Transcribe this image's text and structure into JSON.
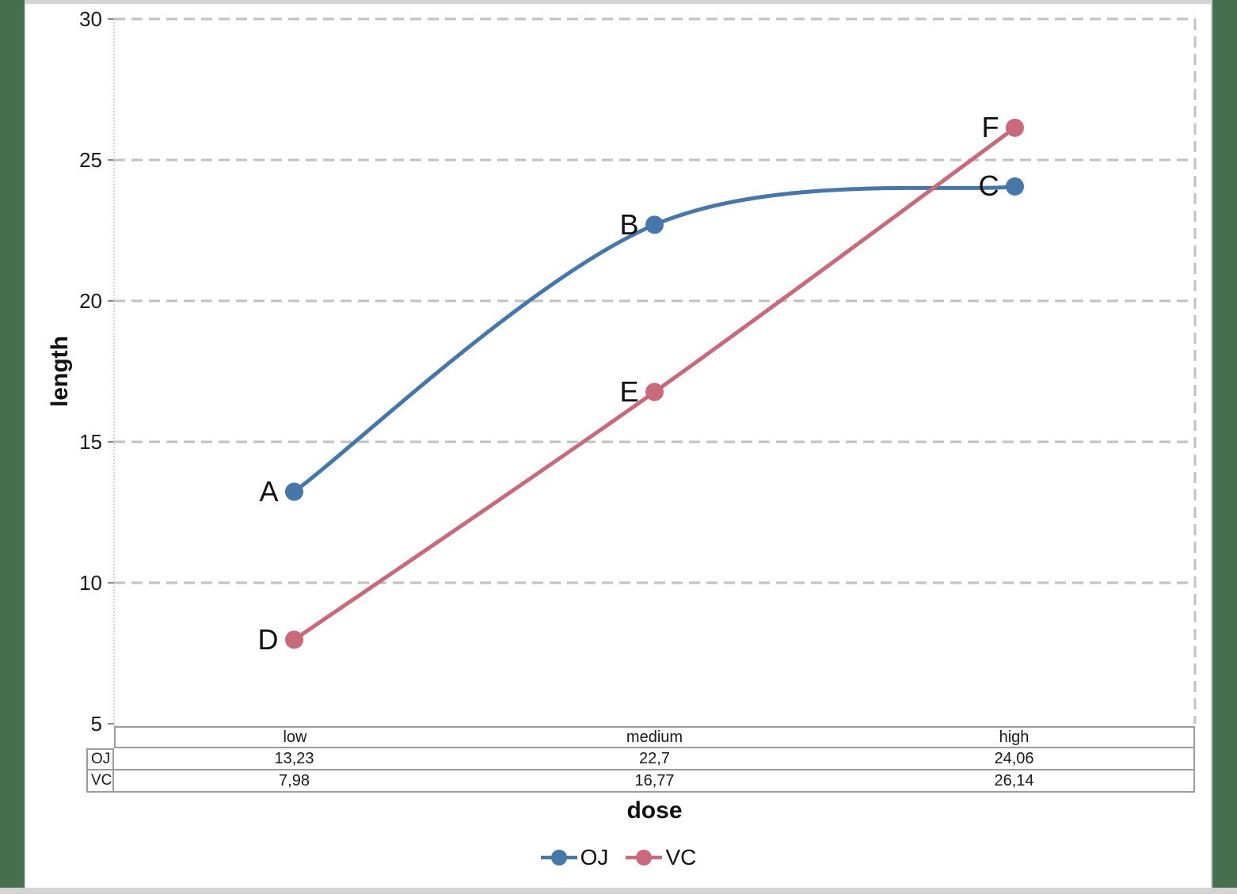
{
  "chart_data": {
    "type": "line",
    "title": "",
    "xlabel": "dose",
    "ylabel": "length",
    "categories": [
      "low",
      "medium",
      "high"
    ],
    "series": [
      {
        "name": "OJ",
        "color": "#4677ab",
        "values": [
          13.23,
          22.7,
          24.06
        ],
        "point_labels": [
          "A",
          "B",
          "C"
        ]
      },
      {
        "name": "VC",
        "color": "#c9697a",
        "values": [
          7.98,
          16.77,
          26.14
        ],
        "point_labels": [
          "D",
          "E",
          "F"
        ]
      }
    ],
    "ylim": [
      5,
      30
    ],
    "y_ticks": [
      30,
      25,
      20,
      15,
      10,
      5
    ],
    "grid": "horizontal-dashed",
    "smooth": true,
    "legend_position": "bottom"
  },
  "data_table": {
    "header": [
      "low",
      "medium",
      "high"
    ],
    "rows": [
      {
        "label": "OJ",
        "cells": [
          "13,23",
          "22,7",
          "24,06"
        ]
      },
      {
        "label": "VC",
        "cells": [
          "7,98",
          "16,77",
          "26,14"
        ]
      }
    ]
  },
  "legend": {
    "items": [
      {
        "label": "OJ",
        "color": "#4677ab"
      },
      {
        "label": "VC",
        "color": "#c9697a"
      }
    ]
  },
  "colors": {
    "page_background": "#486e50",
    "frame_strip": "#d3d3d3",
    "grid": "#c2c2c2",
    "axis": "#c9c9c9",
    "tick": "#8a8a8a",
    "table_border": "#9c9c9c"
  }
}
